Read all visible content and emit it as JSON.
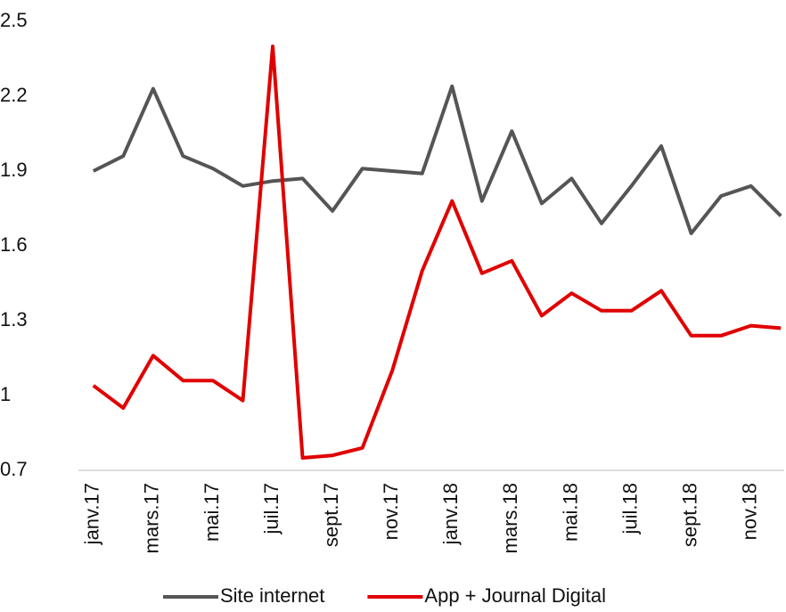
{
  "chart_data": {
    "type": "line",
    "categories": [
      "janv.17",
      null,
      "mars.17",
      null,
      "mai.17",
      null,
      "juil.17",
      null,
      "sept.17",
      null,
      "nov.17",
      null,
      "janv.18",
      null,
      "mars.18",
      null,
      "mai.18",
      null,
      "juil.18",
      null,
      "sept.18",
      null,
      "nov.18",
      null
    ],
    "series": [
      {
        "name": "Site internet",
        "color": "#555555",
        "values": [
          1.9,
          1.96,
          2.23,
          1.96,
          1.91,
          1.84,
          1.86,
          1.87,
          1.74,
          1.91,
          1.9,
          1.89,
          2.24,
          1.78,
          2.06,
          1.77,
          1.87,
          1.69,
          1.84,
          2.0,
          1.65,
          1.8,
          1.84,
          1.72
        ]
      },
      {
        "name": "App + Journal Digital",
        "color": "#e00000",
        "values": [
          1.04,
          0.95,
          1.16,
          1.06,
          1.06,
          0.98,
          2.4,
          0.75,
          0.76,
          0.79,
          1.1,
          1.5,
          1.78,
          1.49,
          1.54,
          1.32,
          1.41,
          1.34,
          1.34,
          1.42,
          1.24,
          1.24,
          1.28,
          1.27
        ]
      }
    ],
    "ylim": [
      0.7,
      2.5
    ],
    "yticks": [
      2.5,
      2.2,
      1.9,
      1.6,
      1.3,
      1,
      0.7
    ],
    "grid": false,
    "legend": "bottom"
  }
}
